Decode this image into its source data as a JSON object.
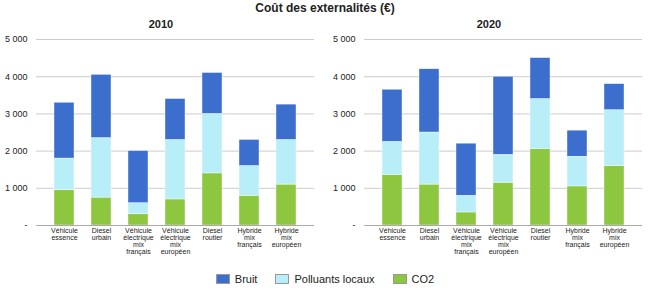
{
  "title": "Coût des externalités (€)",
  "chart_data": [
    {
      "type": "bar",
      "title": "2010",
      "stacked": true,
      "grid": true,
      "legend": "bottom",
      "categories": [
        "Véhicule\nessence",
        "Diesel\nurbain",
        "Véhicule\nélectrique\nmix\nfrançais",
        "Véhicule\nélectrique\nmix\neuropéen",
        "Diesel\nroutier",
        "Hybride\nmix\nfrançais",
        "Hybride\nmix\neuropéen"
      ],
      "series": [
        {
          "name": "CO2",
          "color": "#8dc63f",
          "values": [
            950,
            750,
            300,
            700,
            1400,
            800,
            1100
          ]
        },
        {
          "name": "Polluants locaux",
          "color": "#b8eef8",
          "values": [
            850,
            1600,
            300,
            1600,
            1600,
            800,
            1200
          ]
        },
        {
          "name": "Bruit",
          "color": "#3c6fcd",
          "values": [
            1500,
            1700,
            1400,
            1100,
            1100,
            700,
            950
          ]
        }
      ],
      "ylim": [
        0,
        5000
      ],
      "yticks": [
        {
          "value": 0,
          "label": "-"
        },
        {
          "value": 1000,
          "label": "1 000"
        },
        {
          "value": 2000,
          "label": "2 000"
        },
        {
          "value": 3000,
          "label": "3 000"
        },
        {
          "value": 4000,
          "label": "4 000"
        },
        {
          "value": 5000,
          "label": "5 000"
        }
      ]
    },
    {
      "type": "bar",
      "title": "2020",
      "stacked": true,
      "grid": true,
      "legend": "bottom",
      "categories": [
        "Véhicule\nessence",
        "Diesel\nurbain",
        "Véhicule\nélectrique\nmix\nfrançais",
        "Véhicule\nélectrique\nmix\neuropéen",
        "Diesel\nroutier",
        "Hybride\nmix\nfrançais",
        "Hybride\nmix\neuropéen"
      ],
      "series": [
        {
          "name": "CO2",
          "color": "#8dc63f",
          "values": [
            1350,
            1100,
            350,
            1150,
            2050,
            1050,
            1600
          ]
        },
        {
          "name": "Polluants locaux",
          "color": "#b8eef8",
          "values": [
            900,
            1400,
            450,
            750,
            1350,
            800,
            1500
          ]
        },
        {
          "name": "Bruit",
          "color": "#3c6fcd",
          "values": [
            1400,
            1700,
            1400,
            2100,
            1100,
            700,
            700
          ]
        }
      ],
      "ylim": [
        0,
        5000
      ],
      "yticks": [
        {
          "value": 0,
          "label": "-"
        },
        {
          "value": 1000,
          "label": "1 000"
        },
        {
          "value": 2000,
          "label": "2 000"
        },
        {
          "value": 3000,
          "label": "3 000"
        },
        {
          "value": 4000,
          "label": "4 000"
        },
        {
          "value": 5000,
          "label": "5 000"
        }
      ]
    }
  ]
}
